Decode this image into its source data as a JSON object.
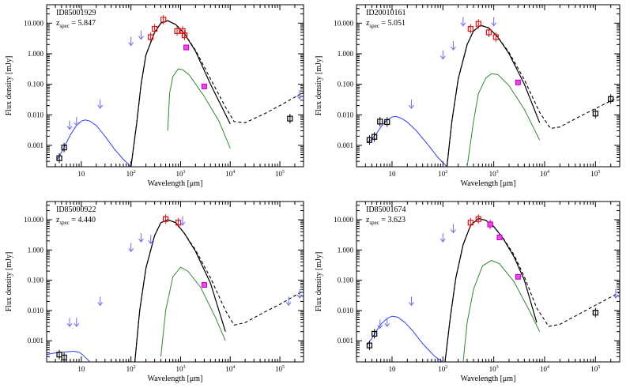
{
  "figure": {
    "ylabel": "Flux density [mJy]",
    "xlabel": "Wavelength [μm]",
    "z_label_main": "z",
    "z_label_sub": "spec"
  },
  "chart_data": [
    {
      "type": "scatter",
      "title": "ID85001929",
      "z_spec": "5.847",
      "xlabel": "Wavelength [μm]",
      "ylabel": "Flux density [mJy]",
      "x_scale": "log",
      "y_scale": "log",
      "xlim": [
        2,
        300000
      ],
      "ylim": [
        0.0002,
        40
      ],
      "x_ticks": [
        "10",
        "100",
        "1000",
        "10000",
        "100000"
      ],
      "x_tick_labels": [
        [
          "10",
          ""
        ],
        [
          "10",
          "2"
        ],
        [
          "10",
          "3"
        ],
        [
          "10",
          "4"
        ],
        [
          "10",
          "5"
        ]
      ],
      "y_ticks": [
        "0.001",
        "0.010",
        "0.100",
        "1.000",
        "10.000"
      ],
      "blue_curve": [
        [
          3.2,
          0.00033
        ],
        [
          4,
          0.0006
        ],
        [
          5,
          0.0012
        ],
        [
          6,
          0.0022
        ],
        [
          8,
          0.0045
        ],
        [
          10,
          0.0062
        ],
        [
          12,
          0.0068
        ],
        [
          15,
          0.0062
        ],
        [
          20,
          0.0045
        ],
        [
          30,
          0.002
        ],
        [
          45,
          0.0008
        ],
        [
          70,
          0.00035
        ],
        [
          100,
          0.0002
        ]
      ],
      "black_curve": [
        [
          100,
          0.0002
        ],
        [
          130,
          0.005
        ],
        [
          160,
          0.1
        ],
        [
          200,
          0.9
        ],
        [
          300,
          5
        ],
        [
          400,
          10
        ],
        [
          550,
          12
        ],
        [
          800,
          9
        ],
        [
          1200,
          4.5
        ],
        [
          2000,
          1.2
        ],
        [
          4000,
          0.1
        ],
        [
          10000,
          0.005
        ]
      ],
      "dashed_curve": [
        [
          100,
          0.0002
        ],
        [
          130,
          0.005
        ],
        [
          160,
          0.1
        ],
        [
          200,
          0.9
        ],
        [
          300,
          5
        ],
        [
          400,
          10
        ],
        [
          550,
          12
        ],
        [
          800,
          9
        ],
        [
          1200,
          4.5
        ],
        [
          2000,
          1.3
        ],
        [
          4000,
          0.15
        ],
        [
          8000,
          0.018
        ],
        [
          12000,
          0.006
        ],
        [
          20000,
          0.0055
        ],
        [
          50000,
          0.011
        ],
        [
          100000,
          0.02
        ],
        [
          300000,
          0.055
        ]
      ],
      "green_curve": [
        [
          550,
          0.003
        ],
        [
          600,
          0.05
        ],
        [
          700,
          0.18
        ],
        [
          900,
          0.32
        ],
        [
          1100,
          0.3
        ],
        [
          1500,
          0.2
        ],
        [
          3000,
          0.04
        ],
        [
          6000,
          0.006
        ],
        [
          10000,
          0.0008
        ]
      ],
      "red_points": [
        [
          250,
          3.5
        ],
        [
          300,
          6.5
        ],
        [
          450,
          13
        ],
        [
          850,
          5.5
        ],
        [
          1100,
          5.5
        ],
        [
          1200,
          4
        ]
      ],
      "magenta_points": [
        [
          1300,
          1.6
        ],
        [
          3000,
          0.085
        ]
      ],
      "black_points": [
        [
          3.6,
          0.00038
        ],
        [
          4.5,
          0.00085
        ],
        [
          160000,
          0.0075
        ]
      ],
      "upper_limits": [
        [
          5.8,
          0.0045
        ],
        [
          8,
          0.006
        ],
        [
          24,
          0.022
        ],
        [
          100,
          2.5
        ],
        [
          160,
          4
        ],
        [
          250000,
          0.045
        ]
      ]
    },
    {
      "type": "scatter",
      "title": "ID20010161",
      "z_spec": "5.051",
      "xlabel": "Wavelength [μm]",
      "ylabel": "Flux density [mJy]",
      "x_scale": "log",
      "y_scale": "log",
      "xlim": [
        2,
        300000
      ],
      "ylim": [
        0.0002,
        40
      ],
      "x_ticks": [
        "10",
        "100",
        "1000",
        "10000",
        "100000"
      ],
      "x_tick_labels": [
        [
          "10",
          ""
        ],
        [
          "10",
          "2"
        ],
        [
          "10",
          "3"
        ],
        [
          "10",
          "4"
        ],
        [
          "10",
          "5"
        ]
      ],
      "y_ticks": [
        "0.001",
        "0.010",
        "0.100",
        "1.000",
        "10.000"
      ],
      "blue_curve": [
        [
          3.2,
          0.0012
        ],
        [
          4,
          0.0016
        ],
        [
          5,
          0.0025
        ],
        [
          6,
          0.004
        ],
        [
          8,
          0.0068
        ],
        [
          10,
          0.0085
        ],
        [
          12,
          0.0088
        ],
        [
          15,
          0.0078
        ],
        [
          20,
          0.0058
        ],
        [
          30,
          0.003
        ],
        [
          50,
          0.0011
        ],
        [
          80,
          0.0004
        ],
        [
          120,
          0.0002
        ]
      ],
      "black_curve": [
        [
          120,
          0.0002
        ],
        [
          150,
          0.006
        ],
        [
          200,
          0.15
        ],
        [
          300,
          2
        ],
        [
          400,
          5.5
        ],
        [
          550,
          8.5
        ],
        [
          800,
          7
        ],
        [
          1200,
          3.5
        ],
        [
          2000,
          1.0
        ],
        [
          4000,
          0.1
        ],
        [
          8000,
          0.0055
        ]
      ],
      "dashed_curve": [
        [
          120,
          0.0002
        ],
        [
          150,
          0.006
        ],
        [
          200,
          0.15
        ],
        [
          300,
          2
        ],
        [
          400,
          5.5
        ],
        [
          550,
          8.5
        ],
        [
          800,
          7
        ],
        [
          1200,
          3.5
        ],
        [
          2000,
          1.1
        ],
        [
          4000,
          0.14
        ],
        [
          8000,
          0.012
        ],
        [
          13000,
          0.0036
        ],
        [
          20000,
          0.004
        ],
        [
          50000,
          0.009
        ],
        [
          100000,
          0.016
        ],
        [
          300000,
          0.04
        ]
      ],
      "green_curve": [
        [
          300,
          0.0002
        ],
        [
          400,
          0.006
        ],
        [
          500,
          0.05
        ],
        [
          700,
          0.16
        ],
        [
          900,
          0.22
        ],
        [
          1200,
          0.21
        ],
        [
          2000,
          0.09
        ],
        [
          4000,
          0.015
        ],
        [
          8000,
          0.0015
        ]
      ],
      "red_points": [
        [
          350,
          6.5
        ],
        [
          500,
          9.5
        ],
        [
          800,
          5
        ],
        [
          1100,
          3.5
        ]
      ],
      "magenta_points": [
        [
          3000,
          0.115
        ]
      ],
      "black_points": [
        [
          3.6,
          0.0015
        ],
        [
          4.5,
          0.0019
        ],
        [
          5.8,
          0.006
        ],
        [
          8,
          0.0058
        ],
        [
          100000,
          0.011
        ],
        [
          200000,
          0.033
        ]
      ],
      "upper_limits": [
        [
          24,
          0.022
        ],
        [
          100,
          0.9
        ],
        [
          160,
          1.8
        ],
        [
          250,
          11
        ],
        [
          1000,
          11
        ]
      ]
    },
    {
      "type": "scatter",
      "title": "ID85000922",
      "z_spec": "4.440",
      "xlabel": "Wavelength [μm]",
      "ylabel": "Flux density [mJy]",
      "x_scale": "log",
      "y_scale": "log",
      "xlim": [
        2,
        300000
      ],
      "ylim": [
        0.0002,
        40
      ],
      "x_ticks": [
        "10",
        "100",
        "1000",
        "10000",
        "100000"
      ],
      "x_tick_labels": [
        [
          "10",
          ""
        ],
        [
          "10",
          "2"
        ],
        [
          "10",
          "3"
        ],
        [
          "10",
          "4"
        ],
        [
          "10",
          "5"
        ]
      ],
      "y_ticks": [
        "0.001",
        "0.010",
        "0.100",
        "1.000",
        "10.000"
      ],
      "blue_curve": [
        [
          2,
          0.00035
        ],
        [
          3,
          0.0004
        ],
        [
          5,
          0.00043
        ],
        [
          7,
          0.00045
        ],
        [
          9,
          0.00042
        ],
        [
          11,
          0.00033
        ],
        [
          13,
          0.00025
        ],
        [
          15,
          0.0002
        ]
      ],
      "black_curve": [
        [
          120,
          0.0002
        ],
        [
          150,
          0.01
        ],
        [
          200,
          0.25
        ],
        [
          300,
          3
        ],
        [
          400,
          8
        ],
        [
          550,
          10
        ],
        [
          800,
          8
        ],
        [
          1200,
          3.5
        ],
        [
          2000,
          0.9
        ],
        [
          4000,
          0.08
        ],
        [
          8000,
          0.002
        ]
      ],
      "dashed_curve": [
        [
          120,
          0.0002
        ],
        [
          150,
          0.01
        ],
        [
          200,
          0.25
        ],
        [
          300,
          3
        ],
        [
          400,
          8
        ],
        [
          550,
          10
        ],
        [
          800,
          8
        ],
        [
          1200,
          3.5
        ],
        [
          2000,
          1.0
        ],
        [
          4000,
          0.12
        ],
        [
          8000,
          0.01
        ],
        [
          12000,
          0.0033
        ],
        [
          20000,
          0.004
        ],
        [
          50000,
          0.009
        ],
        [
          100000,
          0.016
        ],
        [
          300000,
          0.045
        ]
      ],
      "green_curve": [
        [
          400,
          0.0003
        ],
        [
          500,
          0.01
        ],
        [
          700,
          0.13
        ],
        [
          1000,
          0.27
        ],
        [
          1400,
          0.2
        ],
        [
          2500,
          0.06
        ],
        [
          5000,
          0.006
        ],
        [
          8000,
          0.001
        ]
      ],
      "red_points": [
        [
          500,
          10.5
        ],
        [
          900,
          8
        ]
      ],
      "magenta_points": [
        [
          3000,
          0.07
        ]
      ],
      "black_points": [
        [
          3.6,
          0.00035
        ],
        [
          4.5,
          0.00028
        ]
      ],
      "upper_limits": [
        [
          5.8,
          0.004
        ],
        [
          8,
          0.004
        ],
        [
          24,
          0.02
        ],
        [
          100,
          1.2
        ],
        [
          160,
          2.5
        ],
        [
          250,
          2.2
        ],
        [
          1100,
          9
        ],
        [
          150000,
          0.02
        ],
        [
          250000,
          0.035
        ]
      ]
    },
    {
      "type": "scatter",
      "title": "ID85001674",
      "z_spec": "3.623",
      "xlabel": "Wavelength [μm]",
      "ylabel": "Flux density [mJy]",
      "x_scale": "log",
      "y_scale": "log",
      "xlim": [
        2,
        300000
      ],
      "ylim": [
        0.0002,
        40
      ],
      "x_ticks": [
        "10",
        "100",
        "1000",
        "10000",
        "100000"
      ],
      "x_tick_labels": [
        [
          "10",
          ""
        ],
        [
          "10",
          "2"
        ],
        [
          "10",
          "3"
        ],
        [
          "10",
          "4"
        ],
        [
          "10",
          "5"
        ]
      ],
      "y_ticks": [
        "0.001",
        "0.010",
        "0.100",
        "1.000",
        "10.000"
      ],
      "blue_curve": [
        [
          3.2,
          0.0007
        ],
        [
          4,
          0.0012
        ],
        [
          5,
          0.0022
        ],
        [
          6,
          0.0035
        ],
        [
          8,
          0.0055
        ],
        [
          10,
          0.0065
        ],
        [
          13,
          0.006
        ],
        [
          18,
          0.004
        ],
        [
          25,
          0.0022
        ],
        [
          40,
          0.0008
        ],
        [
          70,
          0.0003
        ],
        [
          100,
          0.0002
        ]
      ],
      "black_curve": [
        [
          110,
          0.0002
        ],
        [
          140,
          0.006
        ],
        [
          180,
          0.12
        ],
        [
          250,
          1.5
        ],
        [
          350,
          6.5
        ],
        [
          500,
          11
        ],
        [
          700,
          9.5
        ],
        [
          1000,
          6
        ],
        [
          1500,
          2.5
        ],
        [
          2500,
          0.6
        ],
        [
          4000,
          0.1
        ],
        [
          7000,
          0.004
        ]
      ],
      "dashed_curve": [
        [
          110,
          0.0002
        ],
        [
          140,
          0.006
        ],
        [
          180,
          0.12
        ],
        [
          250,
          1.5
        ],
        [
          350,
          6.5
        ],
        [
          500,
          11
        ],
        [
          700,
          9.5
        ],
        [
          1000,
          6
        ],
        [
          1500,
          2.6
        ],
        [
          2500,
          0.7
        ],
        [
          4000,
          0.13
        ],
        [
          7000,
          0.012
        ],
        [
          12000,
          0.003
        ],
        [
          20000,
          0.0035
        ],
        [
          50000,
          0.008
        ],
        [
          100000,
          0.015
        ],
        [
          300000,
          0.04
        ]
      ],
      "green_curve": [
        [
          250,
          0.0002
        ],
        [
          300,
          0.004
        ],
        [
          400,
          0.05
        ],
        [
          600,
          0.3
        ],
        [
          900,
          0.45
        ],
        [
          1300,
          0.35
        ],
        [
          2500,
          0.09
        ],
        [
          5000,
          0.01
        ],
        [
          8000,
          0.002
        ]
      ],
      "red_points": [
        [
          350,
          8
        ],
        [
          500,
          10.5
        ],
        [
          850,
          7
        ]
      ],
      "magenta_points": [
        [
          850,
          7
        ],
        [
          1300,
          2.6
        ],
        [
          3000,
          0.13
        ]
      ],
      "black_points": [
        [
          3.6,
          0.0007
        ],
        [
          4.5,
          0.0017
        ],
        [
          100000,
          0.0085
        ]
      ],
      "upper_limits": [
        [
          5.8,
          0.0035
        ],
        [
          8,
          0.004
        ],
        [
          24,
          0.02
        ],
        [
          100,
          2.5
        ],
        [
          160,
          5
        ],
        [
          250000,
          0.035
        ]
      ]
    }
  ]
}
